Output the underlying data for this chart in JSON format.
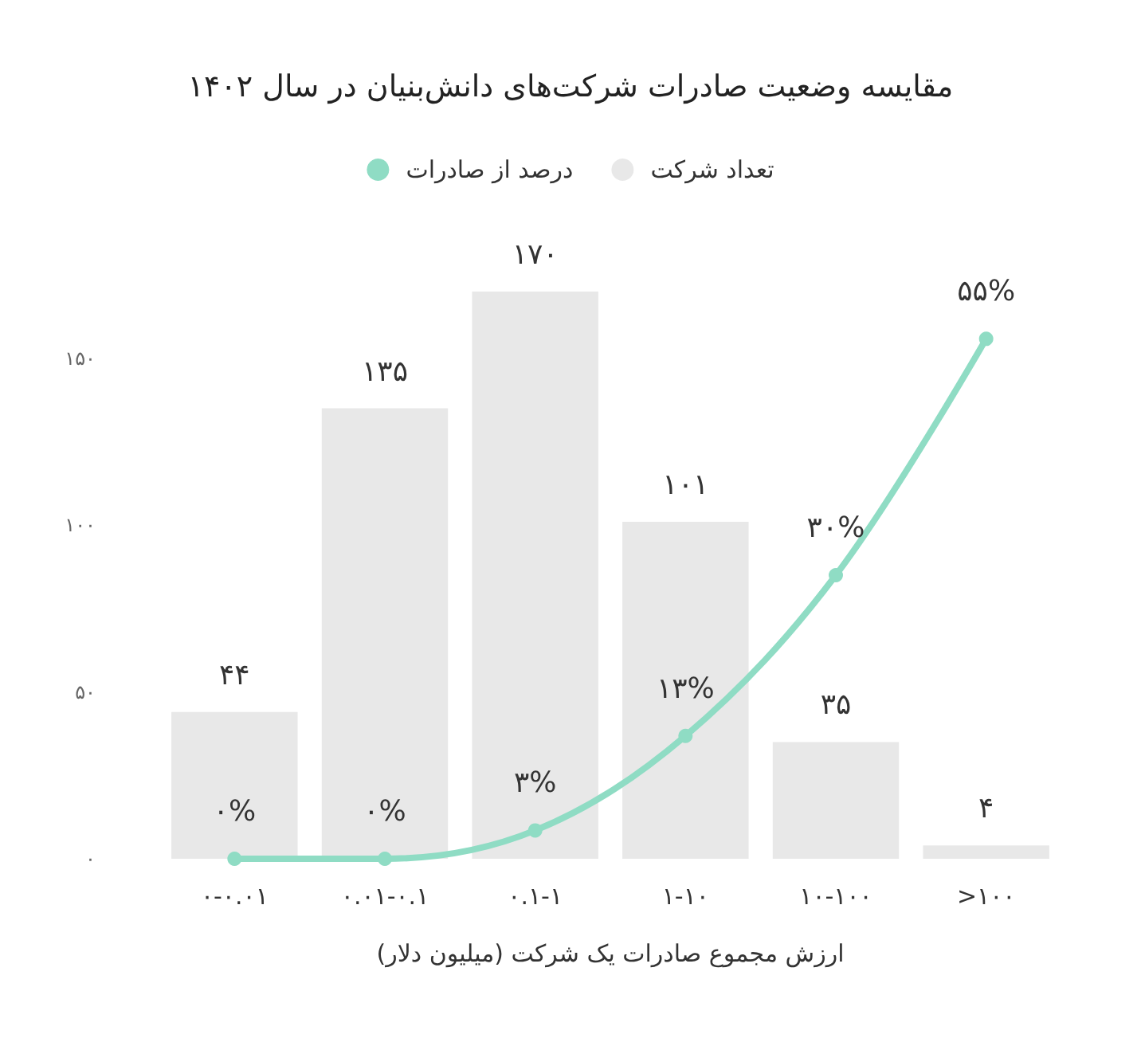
{
  "chart_data": {
    "type": "bar",
    "title": "مقایسه وضعیت صادرات شرکت‌های دانش‌بنیان در سال ۱۴۰۲",
    "xlabel": "ارزش مجموع صادرات یک شرکت (میلیون دلار)",
    "categories": [
      "۰-۰.۰۱",
      "۰.۰۱-۰.۱",
      "۰.۱-۱",
      "۱-۱۰",
      "۱۰-۱۰۰",
      ">۱۰۰"
    ],
    "series": [
      {
        "name": "تعداد شرکت",
        "color": "#e8e8e8",
        "values": [
          44,
          135,
          170,
          101,
          35,
          4
        ],
        "value_labels": [
          "۴۴",
          "۱۳۵",
          "۱۷۰",
          "۱۰۱",
          "۳۵",
          "۴"
        ]
      },
      {
        "name": "درصد از صادرات",
        "type": "line",
        "axis": "y2",
        "color": "#8fdcc4",
        "marker": "circle",
        "values": [
          0,
          0,
          3,
          13,
          30,
          55
        ],
        "value_labels": [
          "۰%",
          "۰%",
          "۳%",
          "۱۳%",
          "۳۰%",
          "۵۵%"
        ]
      }
    ],
    "yticks": [
      {
        "value": 0,
        "label": "۰"
      },
      {
        "value": 50,
        "label": "۵۰"
      },
      {
        "value": 100,
        "label": "۱۰۰"
      },
      {
        "value": 150,
        "label": "۱۵۰"
      }
    ],
    "ylim": [
      0,
      170
    ],
    "tick_labels": "xy",
    "grid": false,
    "legend": "top"
  }
}
